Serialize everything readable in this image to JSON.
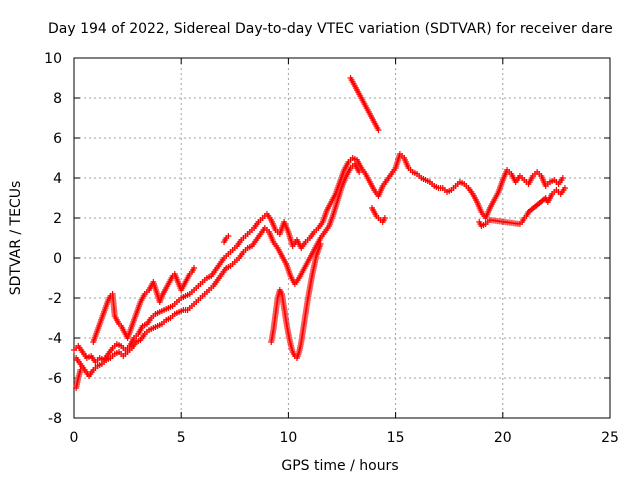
{
  "chart_data": {
    "type": "scatter",
    "title": "Day 194 of 2022, Sidereal Day-to-day VTEC variation (SDTVAR) for receiver dare",
    "xlabel": "GPS time / hours",
    "ylabel": "SDTVAR / TECUs",
    "xlim": [
      0,
      25
    ],
    "ylim": [
      -8,
      10
    ],
    "xticks": [
      0,
      5,
      10,
      15,
      20,
      25
    ],
    "yticks": [
      -8,
      -6,
      -4,
      -2,
      0,
      2,
      4,
      6,
      8,
      10
    ],
    "xtick_labels": [
      "0",
      "5",
      "10",
      "15",
      "20",
      "25"
    ],
    "ytick_labels": [
      "-8",
      "-6",
      "-4",
      "-2",
      "0",
      "2",
      "4",
      "6",
      "8",
      "10"
    ],
    "grid": true,
    "legend": "none",
    "marker": "+",
    "series": [
      {
        "name": "main-track-upper",
        "color": "#ff0000",
        "points": [
          [
            0.0,
            -4.6
          ],
          [
            0.2,
            -4.4
          ],
          [
            0.4,
            -4.7
          ],
          [
            0.6,
            -5.0
          ],
          [
            0.8,
            -4.9
          ],
          [
            1.0,
            -5.2
          ],
          [
            1.2,
            -5.0
          ],
          [
            1.4,
            -5.1
          ],
          [
            1.6,
            -4.8
          ],
          [
            1.8,
            -4.5
          ],
          [
            2.0,
            -4.3
          ],
          [
            2.2,
            -4.4
          ],
          [
            2.4,
            -4.6
          ],
          [
            2.6,
            -4.4
          ],
          [
            2.8,
            -4.0
          ],
          [
            3.0,
            -3.8
          ],
          [
            3.2,
            -3.4
          ],
          [
            3.4,
            -3.3
          ],
          [
            3.6,
            -3.0
          ],
          [
            3.8,
            -2.8
          ],
          [
            4.0,
            -2.7
          ],
          [
            4.2,
            -2.6
          ],
          [
            4.4,
            -2.5
          ],
          [
            4.6,
            -2.4
          ],
          [
            4.8,
            -2.2
          ],
          [
            5.0,
            -2.0
          ],
          [
            5.2,
            -1.9
          ],
          [
            5.4,
            -1.8
          ],
          [
            5.6,
            -1.6
          ],
          [
            5.8,
            -1.4
          ],
          [
            6.0,
            -1.2
          ],
          [
            6.2,
            -1.0
          ],
          [
            6.4,
            -0.9
          ],
          [
            6.6,
            -0.6
          ],
          [
            6.8,
            -0.3
          ],
          [
            7.0,
            0.0
          ],
          [
            7.2,
            0.2
          ],
          [
            7.4,
            0.4
          ],
          [
            7.6,
            0.6
          ],
          [
            7.8,
            0.9
          ],
          [
            8.0,
            1.1
          ],
          [
            8.2,
            1.3
          ],
          [
            8.4,
            1.5
          ],
          [
            8.6,
            1.8
          ],
          [
            8.8,
            2.0
          ],
          [
            9.0,
            2.2
          ],
          [
            9.2,
            1.9
          ],
          [
            9.4,
            1.4
          ],
          [
            9.6,
            1.2
          ],
          [
            9.8,
            1.8
          ],
          [
            10.0,
            1.3
          ],
          [
            10.2,
            0.6
          ],
          [
            10.4,
            0.9
          ],
          [
            10.6,
            0.5
          ],
          [
            10.8,
            0.8
          ],
          [
            11.0,
            1.0
          ],
          [
            11.2,
            1.3
          ],
          [
            11.4,
            1.5
          ],
          [
            11.6,
            1.8
          ],
          [
            11.8,
            2.4
          ],
          [
            12.0,
            2.8
          ],
          [
            12.2,
            3.2
          ],
          [
            12.4,
            3.8
          ],
          [
            12.6,
            4.4
          ],
          [
            12.8,
            4.8
          ],
          [
            13.0,
            5.0
          ],
          [
            13.2,
            4.9
          ],
          [
            13.4,
            4.5
          ],
          [
            13.6,
            4.2
          ],
          [
            13.8,
            3.8
          ],
          [
            14.0,
            3.4
          ],
          [
            14.2,
            3.1
          ],
          [
            14.4,
            3.6
          ],
          [
            14.6,
            3.9
          ],
          [
            14.8,
            4.2
          ],
          [
            15.0,
            4.5
          ],
          [
            15.2,
            5.2
          ],
          [
            15.4,
            5.0
          ],
          [
            15.6,
            4.5
          ],
          [
            15.8,
            4.3
          ],
          [
            16.0,
            4.2
          ],
          [
            16.2,
            4.0
          ],
          [
            16.4,
            3.9
          ],
          [
            16.6,
            3.8
          ],
          [
            16.8,
            3.6
          ],
          [
            17.0,
            3.5
          ],
          [
            17.2,
            3.5
          ],
          [
            17.4,
            3.3
          ],
          [
            17.6,
            3.4
          ],
          [
            17.8,
            3.6
          ],
          [
            18.0,
            3.8
          ],
          [
            18.2,
            3.7
          ],
          [
            18.4,
            3.5
          ],
          [
            18.6,
            3.2
          ],
          [
            18.8,
            2.8
          ],
          [
            19.0,
            2.3
          ],
          [
            19.2,
            2.0
          ],
          [
            19.4,
            2.5
          ],
          [
            19.6,
            2.9
          ],
          [
            19.8,
            3.3
          ],
          [
            20.0,
            3.9
          ],
          [
            20.2,
            4.4
          ],
          [
            20.4,
            4.2
          ],
          [
            20.6,
            3.8
          ],
          [
            20.8,
            4.1
          ],
          [
            21.0,
            3.9
          ],
          [
            21.2,
            3.7
          ],
          [
            21.4,
            4.1
          ],
          [
            21.6,
            4.3
          ],
          [
            21.8,
            4.1
          ],
          [
            22.0,
            3.6
          ],
          [
            22.2,
            3.8
          ],
          [
            22.4,
            3.9
          ],
          [
            22.6,
            3.7
          ],
          [
            22.8,
            4.0
          ]
        ]
      },
      {
        "name": "main-track-lower",
        "color": "#ff0000",
        "points": [
          [
            0.1,
            -5.0
          ],
          [
            0.3,
            -5.3
          ],
          [
            0.5,
            -5.6
          ],
          [
            0.7,
            -5.9
          ],
          [
            0.9,
            -5.6
          ],
          [
            1.1,
            -5.4
          ],
          [
            1.3,
            -5.3
          ],
          [
            1.5,
            -5.1
          ],
          [
            1.7,
            -5.0
          ],
          [
            1.9,
            -4.8
          ],
          [
            2.1,
            -4.7
          ],
          [
            2.3,
            -4.9
          ],
          [
            2.5,
            -4.7
          ],
          [
            2.7,
            -4.5
          ],
          [
            2.9,
            -4.2
          ],
          [
            3.1,
            -4.1
          ],
          [
            3.3,
            -3.8
          ],
          [
            3.5,
            -3.6
          ],
          [
            3.7,
            -3.5
          ],
          [
            3.9,
            -3.4
          ],
          [
            4.1,
            -3.3
          ],
          [
            4.3,
            -3.1
          ],
          [
            4.5,
            -3.0
          ],
          [
            4.7,
            -2.8
          ],
          [
            4.9,
            -2.7
          ],
          [
            5.1,
            -2.6
          ],
          [
            5.3,
            -2.6
          ],
          [
            5.5,
            -2.4
          ],
          [
            5.7,
            -2.2
          ],
          [
            5.9,
            -2.0
          ],
          [
            6.1,
            -1.8
          ],
          [
            6.3,
            -1.6
          ],
          [
            6.5,
            -1.4
          ],
          [
            6.7,
            -1.1
          ],
          [
            6.9,
            -0.8
          ],
          [
            7.1,
            -0.5
          ],
          [
            7.3,
            -0.4
          ],
          [
            7.5,
            -0.2
          ],
          [
            7.7,
            0.0
          ],
          [
            7.9,
            0.3
          ],
          [
            8.1,
            0.5
          ],
          [
            8.3,
            0.6
          ],
          [
            8.5,
            0.9
          ],
          [
            8.7,
            1.2
          ],
          [
            8.9,
            1.5
          ],
          [
            9.1,
            1.3
          ],
          [
            9.3,
            0.8
          ],
          [
            9.5,
            0.5
          ],
          [
            9.7,
            0.1
          ],
          [
            9.9,
            -0.3
          ],
          [
            10.1,
            -0.9
          ],
          [
            10.3,
            -1.3
          ],
          [
            10.5,
            -1.0
          ],
          [
            10.7,
            -0.6
          ],
          [
            10.9,
            -0.2
          ],
          [
            11.1,
            0.2
          ],
          [
            11.3,
            0.6
          ],
          [
            11.5,
            1.0
          ],
          [
            11.7,
            1.3
          ],
          [
            11.9,
            1.6
          ],
          [
            12.1,
            2.2
          ],
          [
            12.3,
            2.9
          ],
          [
            12.5,
            3.6
          ],
          [
            12.7,
            4.1
          ],
          [
            12.9,
            4.5
          ],
          [
            13.1,
            4.7
          ],
          [
            13.3,
            4.3
          ]
        ]
      },
      {
        "name": "early-bursts",
        "color": "#ff0000",
        "points": [
          [
            0.9,
            -4.2
          ],
          [
            1.0,
            -3.9
          ],
          [
            1.1,
            -3.6
          ],
          [
            1.2,
            -3.3
          ],
          [
            1.3,
            -3.0
          ],
          [
            1.4,
            -2.7
          ],
          [
            1.5,
            -2.4
          ],
          [
            1.6,
            -2.1
          ],
          [
            1.7,
            -1.9
          ],
          [
            1.8,
            -1.8
          ],
          [
            1.9,
            -2.9
          ],
          [
            2.0,
            -3.1
          ],
          [
            2.1,
            -3.3
          ],
          [
            2.2,
            -3.4
          ],
          [
            2.3,
            -3.6
          ],
          [
            2.4,
            -3.8
          ],
          [
            2.5,
            -4.0
          ],
          [
            3.0,
            -2.5
          ],
          [
            3.1,
            -2.2
          ],
          [
            3.2,
            -2.0
          ],
          [
            3.3,
            -1.8
          ],
          [
            3.4,
            -1.7
          ],
          [
            3.5,
            -1.6
          ],
          [
            3.6,
            -1.4
          ],
          [
            3.7,
            -1.2
          ],
          [
            4.0,
            -2.2
          ],
          [
            4.1,
            -1.9
          ],
          [
            4.2,
            -1.7
          ],
          [
            4.3,
            -1.5
          ],
          [
            4.4,
            -1.3
          ],
          [
            4.5,
            -1.1
          ],
          [
            4.6,
            -0.9
          ],
          [
            4.7,
            -0.8
          ],
          [
            5.0,
            -1.6
          ],
          [
            5.1,
            -1.4
          ],
          [
            5.2,
            -1.2
          ],
          [
            5.3,
            -1.0
          ],
          [
            5.4,
            -0.8
          ],
          [
            5.5,
            -0.7
          ],
          [
            5.6,
            -0.5
          ]
        ]
      },
      {
        "name": "mid-dip",
        "color": "#ff0000",
        "points": [
          [
            9.2,
            -4.2
          ],
          [
            9.3,
            -3.6
          ],
          [
            9.4,
            -2.8
          ],
          [
            9.5,
            -2.0
          ],
          [
            9.6,
            -1.6
          ],
          [
            9.7,
            -1.8
          ],
          [
            9.8,
            -2.5
          ],
          [
            9.9,
            -3.2
          ],
          [
            10.0,
            -3.8
          ],
          [
            10.1,
            -4.3
          ],
          [
            10.2,
            -4.7
          ],
          [
            10.3,
            -4.9
          ],
          [
            10.4,
            -5.0
          ],
          [
            10.5,
            -4.7
          ],
          [
            10.6,
            -4.2
          ],
          [
            10.7,
            -3.5
          ],
          [
            10.8,
            -2.8
          ],
          [
            10.9,
            -2.1
          ],
          [
            11.0,
            -1.5
          ],
          [
            11.1,
            -0.9
          ],
          [
            11.2,
            -0.4
          ],
          [
            11.3,
            0.1
          ],
          [
            11.4,
            0.4
          ],
          [
            11.5,
            0.7
          ]
        ]
      },
      {
        "name": "peak-drop",
        "color": "#ff0000",
        "points": [
          [
            12.9,
            9.0
          ],
          [
            13.0,
            8.8
          ],
          [
            13.1,
            8.6
          ],
          [
            13.2,
            8.4
          ],
          [
            13.3,
            8.2
          ],
          [
            13.4,
            8.0
          ],
          [
            13.5,
            7.8
          ],
          [
            13.6,
            7.6
          ],
          [
            13.7,
            7.4
          ],
          [
            13.8,
            7.2
          ],
          [
            13.9,
            7.0
          ],
          [
            14.0,
            6.8
          ],
          [
            14.1,
            6.6
          ],
          [
            14.2,
            6.4
          ]
        ]
      },
      {
        "name": "small-clusters",
        "color": "#ff0000",
        "points": [
          [
            13.9,
            2.5
          ],
          [
            14.0,
            2.3
          ],
          [
            14.1,
            2.1
          ],
          [
            14.3,
            1.9
          ],
          [
            14.4,
            1.8
          ],
          [
            14.5,
            2.0
          ],
          [
            7.0,
            0.8
          ],
          [
            7.1,
            1.0
          ],
          [
            7.2,
            1.1
          ],
          [
            18.9,
            1.8
          ],
          [
            19.0,
            1.6
          ],
          [
            19.2,
            1.7
          ],
          [
            19.4,
            1.9
          ],
          [
            20.8,
            1.7
          ],
          [
            20.9,
            1.8
          ],
          [
            21.0,
            2.0
          ],
          [
            21.1,
            2.1
          ],
          [
            21.2,
            2.3
          ],
          [
            22.0,
            3.0
          ],
          [
            22.1,
            2.8
          ],
          [
            22.3,
            3.2
          ],
          [
            22.5,
            3.4
          ],
          [
            22.7,
            3.2
          ],
          [
            22.9,
            3.5
          ],
          [
            0.1,
            -6.5
          ],
          [
            0.2,
            -6.0
          ],
          [
            0.3,
            -5.6
          ]
        ]
      }
    ]
  }
}
